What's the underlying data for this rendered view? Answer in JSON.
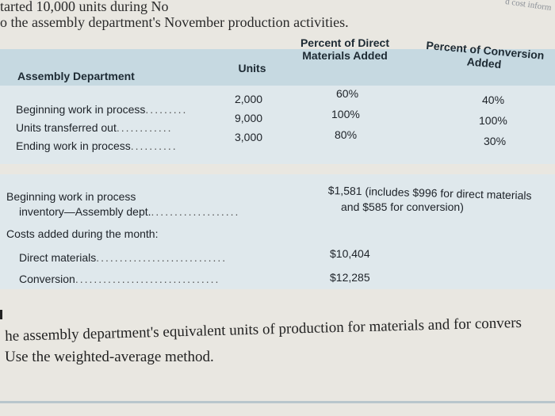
{
  "top_text": {
    "line1": "tarted 10,000 units during No",
    "line2": "o the assembly department's November production activities.",
    "corner": "d cost inform"
  },
  "table": {
    "section_title": "Assembly Department",
    "col_units": "Units",
    "col_materials_line1": "Percent of Direct",
    "col_materials_line2": "Materials Added",
    "col_conversion_line1": "Percent of Conversion",
    "col_conversion_line2": "Added",
    "rows": [
      {
        "label": "Beginning work in process",
        "dots": ".........",
        "units": "2,000",
        "materials": "60%",
        "conversion": "40%"
      },
      {
        "label": "Units transferred out",
        "dots": "............",
        "units": "9,000",
        "materials": "100%",
        "conversion": "100%"
      },
      {
        "label": "Ending work in process",
        "dots": "..........",
        "units": "3,000",
        "materials": "80%",
        "conversion": "30%"
      }
    ]
  },
  "costs": {
    "bwip_line1": "Beginning work in process",
    "bwip_line2": "inventory—Assembly dept.",
    "bwip_dots": "...................",
    "bwip_value_line1": "$1,581 (includes $996 for direct materials",
    "bwip_value_line2": "and $585 for conversion)",
    "added_label": "Costs added during the month:",
    "dm_label": "Direct materials",
    "dm_dots": "............................",
    "dm_value": "$10,404",
    "conv_label": "Conversion",
    "conv_dots": "...............................",
    "conv_value": "$12,285"
  },
  "question": {
    "line1": "he assembly department's equivalent units of production for materials and for convers",
    "line2": "Use the weighted-average method."
  }
}
